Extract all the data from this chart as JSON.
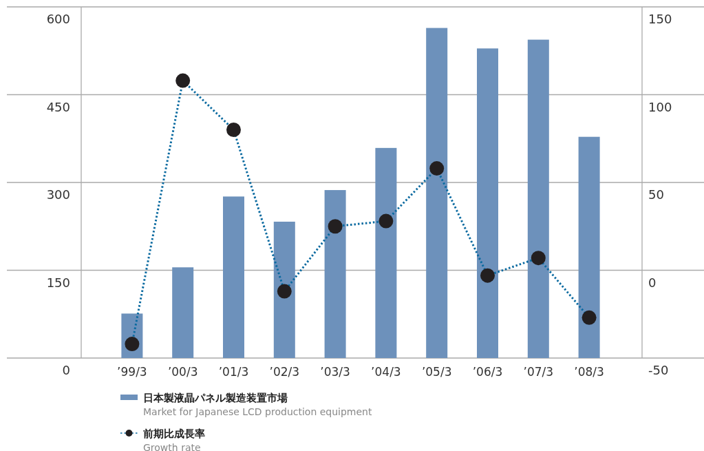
{
  "chart_data": {
    "type": "bar",
    "categories": [
      "’99/3",
      "’00/3",
      "’01/3",
      "’02/3",
      "’03/3",
      "’04/3",
      "’05/3",
      "’06/3",
      "’07/3",
      "’08/3"
    ],
    "series": [
      {
        "name": "日本製液晶パネル製造装置市場\nMarket for Japanese LCD production equipment",
        "color": "#6d91bb",
        "values": [
          76,
          155,
          276,
          233,
          287,
          359,
          564,
          529,
          544,
          378
        ]
      },
      {
        "name": "前期比成長率\nGrowth rate",
        "type": "line",
        "axis": "y2",
        "color": "#0a6aa0",
        "marker": "circle",
        "line_style": "dotted",
        "values": [
          -42,
          108,
          80,
          -12,
          25,
          28,
          58,
          -3,
          7,
          -27
        ]
      }
    ],
    "ylim": [
      0,
      600
    ],
    "yticks": [
      0,
      150,
      300,
      450,
      600
    ],
    "y2lim": [
      -50,
      150
    ],
    "y2ticks": [
      -50,
      0,
      50,
      100,
      150
    ],
    "grid": "y",
    "legend": "bottom"
  }
}
